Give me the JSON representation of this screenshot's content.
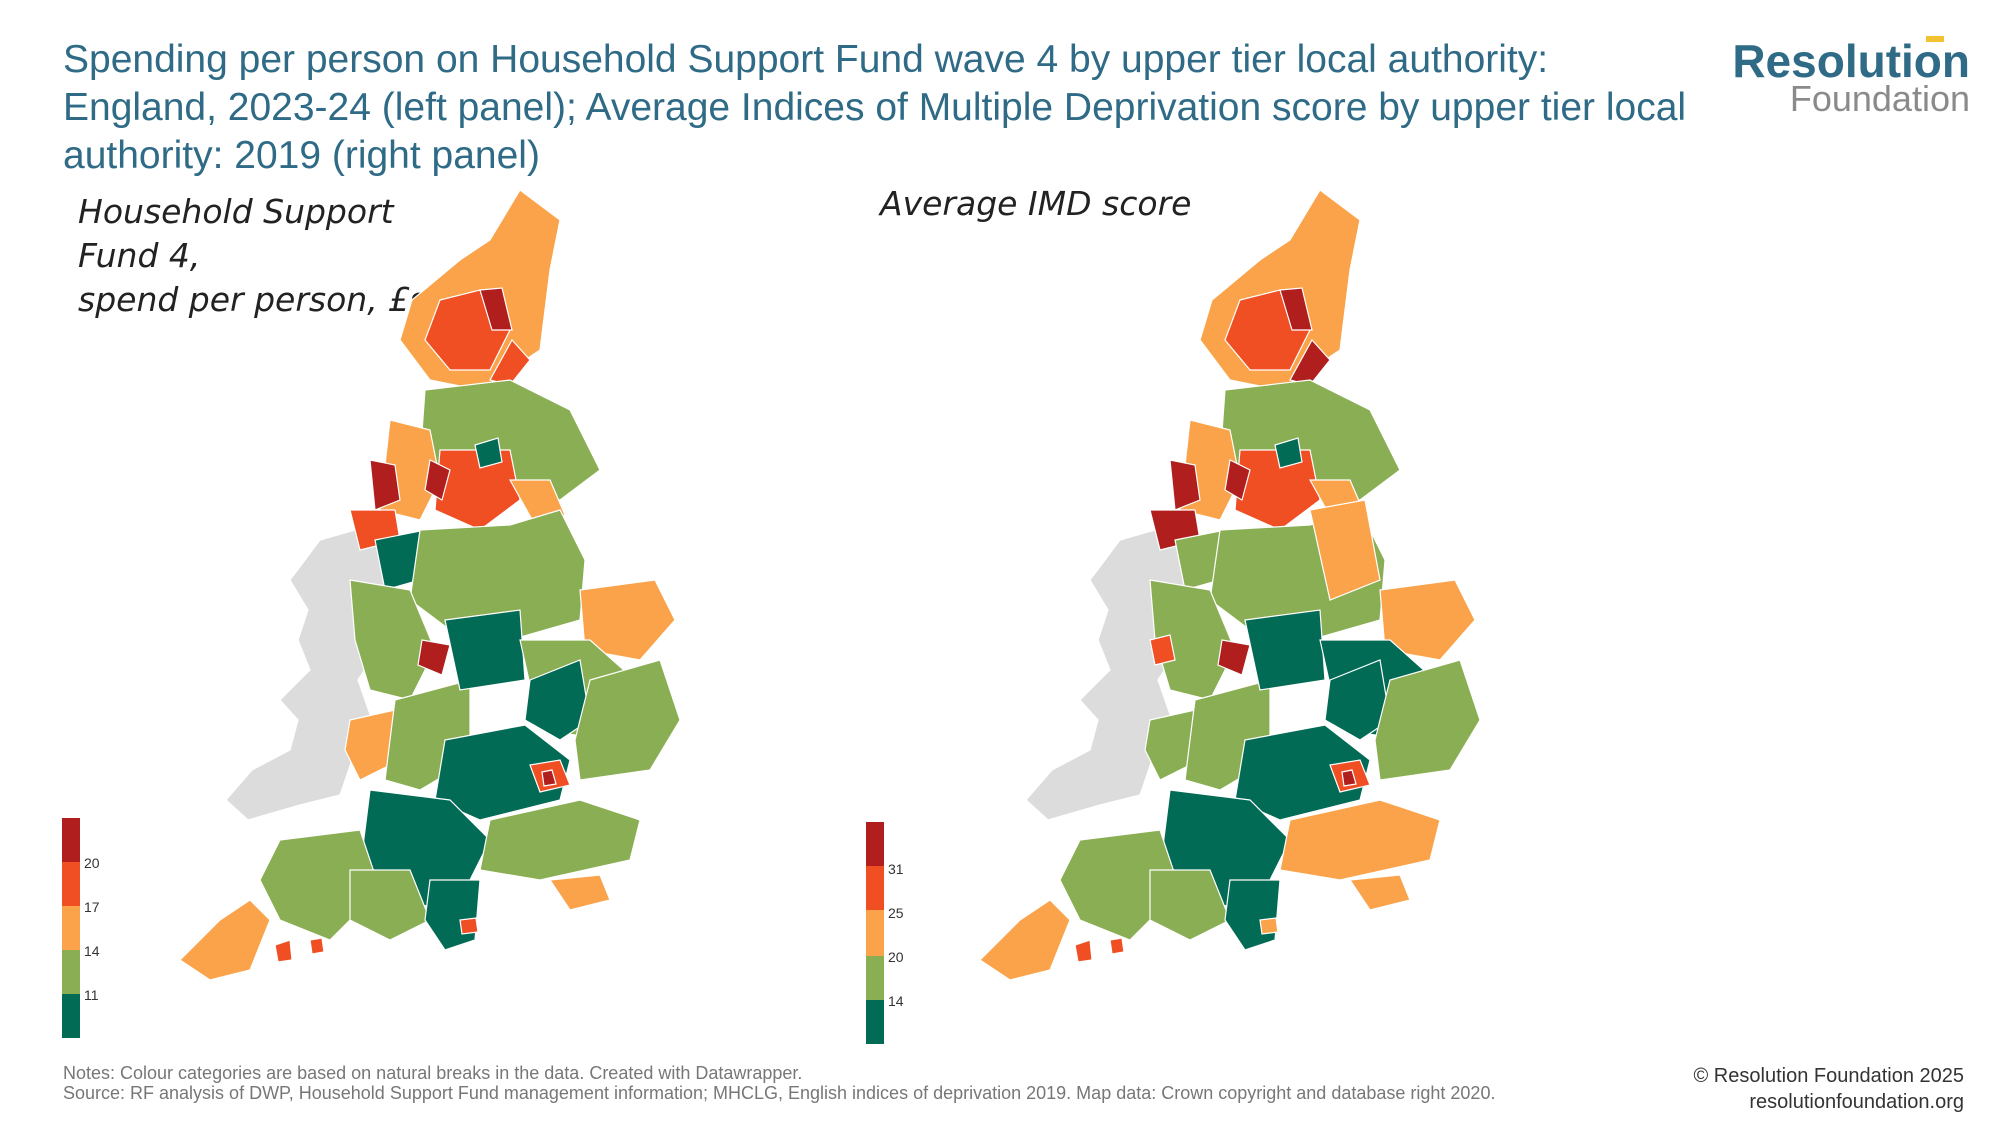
{
  "title": "Spending per person on Household Support Fund wave 4 by upper tier local authority: England, 2023-24 (left panel); Average Indices of Multiple Deprivation score by upper tier local authority: 2019 (right panel)",
  "logo": {
    "line1": "Resolution",
    "line2": "Foundation"
  },
  "panels": {
    "left": {
      "label": "Household Support\nFund 4,\nspend per person, £s"
    },
    "right": {
      "label": "Average IMD score"
    }
  },
  "colors": {
    "dark_red": "#b01e1e",
    "red_orange": "#f04e23",
    "light_orange": "#fba34a",
    "light_green": "#8aae53",
    "dark_green": "#026b55",
    "wales_grey": "#dcdcdc"
  },
  "legends": {
    "left": {
      "ticks": [
        "20",
        "17",
        "14",
        "11"
      ]
    },
    "right": {
      "ticks": [
        "31",
        "25",
        "20",
        "14"
      ]
    }
  },
  "notes": {
    "line1": "Notes: Colour categories are based on natural breaks in the data. Created with Datawrapper.",
    "line2": "Source: RF analysis of DWP, Household Support Fund management information; MHCLG, English indices of deprivation 2019. Map data: Crown copyright and database right 2020."
  },
  "copyright": {
    "line1": "© Resolution Foundation 2025",
    "line2": "resolutionfoundation.org"
  }
}
